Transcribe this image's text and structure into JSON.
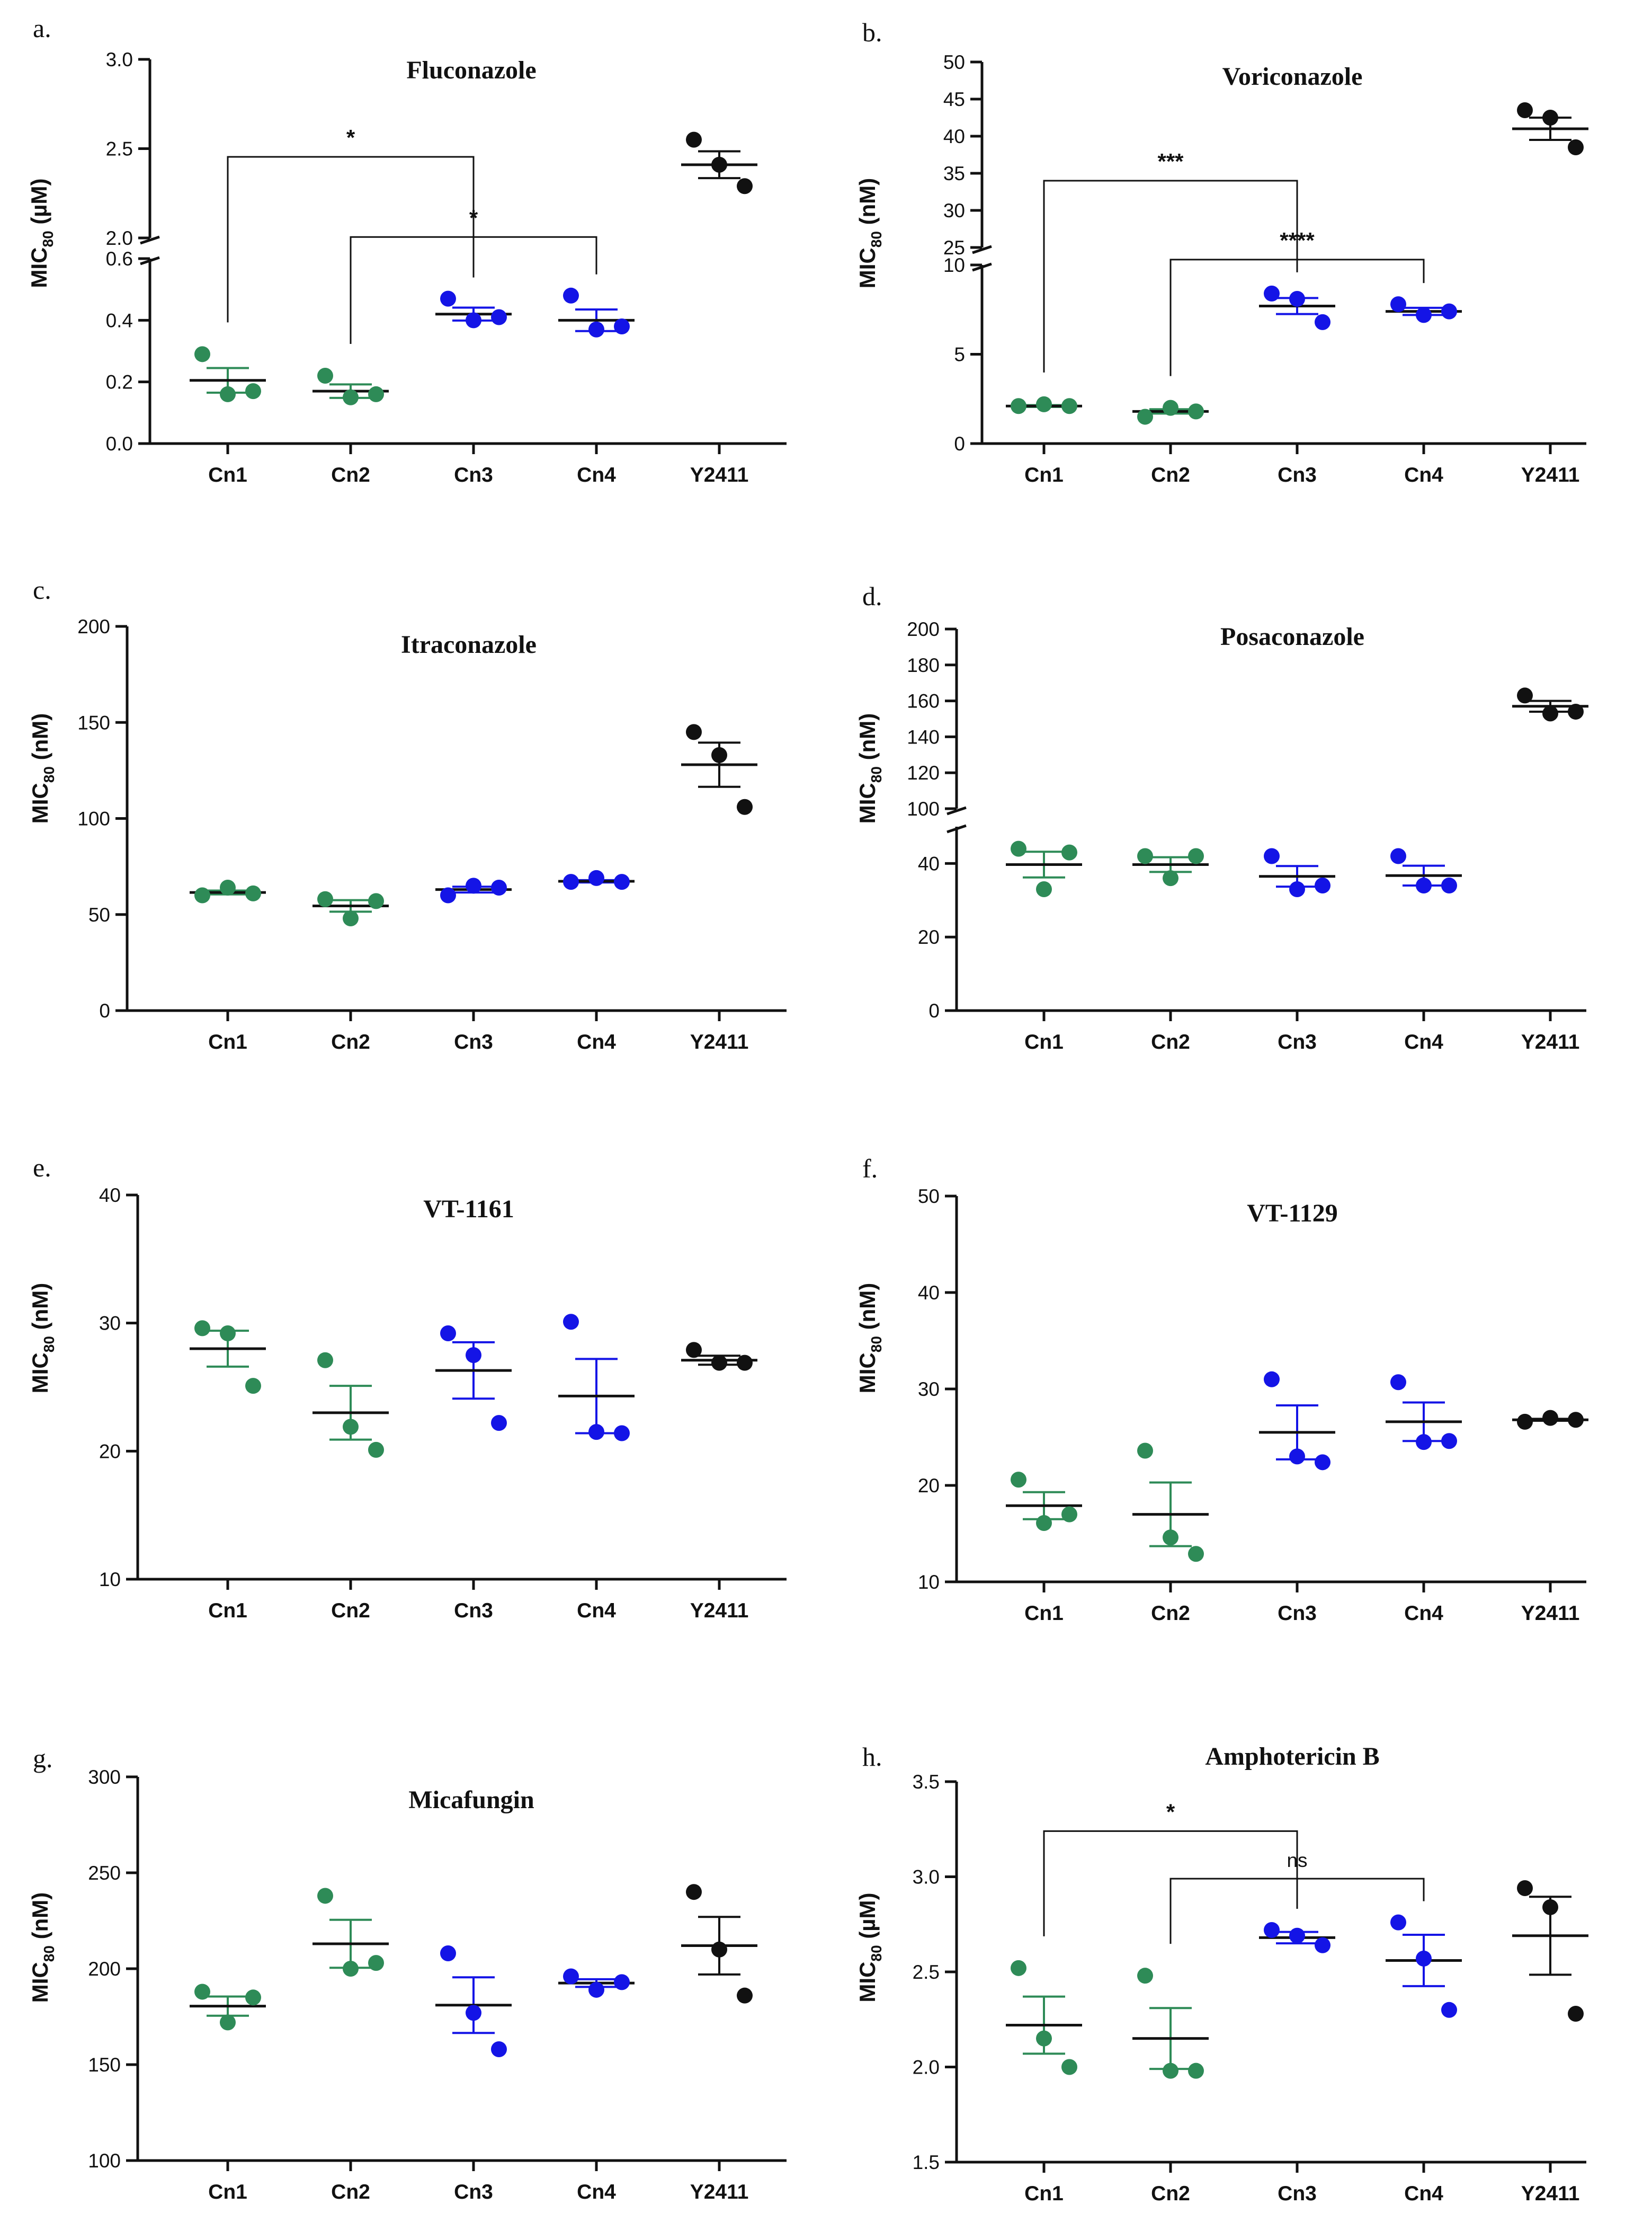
{
  "colors": {
    "green": "#2e8b57",
    "blue": "#1414e6",
    "black": "#111111"
  },
  "chart_data": [
    {
      "id": "a",
      "letter": "a.",
      "type": "scatter",
      "title": "Fluconazole",
      "ylabel": {
        "pre": "MIC",
        "sub": "80",
        "post": " (µM)"
      },
      "categories": [
        "Cn1",
        "Cn2",
        "Cn3",
        "Cn4",
        "Y2411"
      ],
      "cat_colors": [
        "green",
        "green",
        "blue",
        "blue",
        "black"
      ],
      "y_segments": [
        {
          "range": [
            0,
            0.6
          ],
          "ticks": [
            0.0,
            0.2,
            0.4,
            0.6
          ],
          "tick_labels": [
            "0.0",
            "0.2",
            "0.4",
            "0.6"
          ]
        },
        {
          "range": [
            2.0,
            3.0
          ],
          "ticks": [
            2.0,
            2.5,
            3.0
          ],
          "tick_labels": [
            "2.0",
            "2.5",
            "3.0"
          ]
        }
      ],
      "series": [
        {
          "name": "Cn1",
          "points": [
            0.29,
            0.16,
            0.17
          ],
          "mean": 0.205,
          "sem": 0.04
        },
        {
          "name": "Cn2",
          "points": [
            0.22,
            0.15,
            0.16
          ],
          "mean": 0.17,
          "sem": 0.022
        },
        {
          "name": "Cn3",
          "points": [
            0.47,
            0.4,
            0.41
          ],
          "mean": 0.42,
          "sem": 0.021
        },
        {
          "name": "Cn4",
          "points": [
            0.48,
            0.37,
            0.38
          ],
          "mean": 0.4,
          "sem": 0.035
        },
        {
          "name": "Y2411",
          "points": [
            2.55,
            2.41,
            2.29
          ],
          "mean": 2.41,
          "sem": 0.075
        }
      ],
      "significance": [
        {
          "from": 0,
          "to": 2,
          "y": 0.93,
          "label": "*"
        },
        {
          "from": 1,
          "to": 3,
          "y": 0.67,
          "label": "*"
        }
      ]
    },
    {
      "id": "b",
      "letter": "b.",
      "type": "scatter",
      "title": "Voriconazole",
      "ylabel": {
        "pre": "MIC",
        "sub": "80",
        "post": " (nM)"
      },
      "categories": [
        "Cn1",
        "Cn2",
        "Cn3",
        "Cn4",
        "Y2411"
      ],
      "cat_colors": [
        "green",
        "green",
        "blue",
        "blue",
        "black"
      ],
      "y_segments": [
        {
          "range": [
            0,
            10
          ],
          "ticks": [
            0,
            5,
            10
          ],
          "tick_labels": [
            "0",
            "5",
            "10"
          ]
        },
        {
          "range": [
            25,
            50
          ],
          "ticks": [
            25,
            30,
            35,
            40,
            45,
            50
          ],
          "tick_labels": [
            "25",
            "30",
            "35",
            "40",
            "45",
            "50"
          ]
        }
      ],
      "series": [
        {
          "name": "Cn1",
          "points": [
            2.1,
            2.2,
            2.1
          ],
          "mean": 2.1,
          "sem": 0.05
        },
        {
          "name": "Cn2",
          "points": [
            1.5,
            2.0,
            1.8
          ],
          "mean": 1.8,
          "sem": 0.12
        },
        {
          "name": "Cn3",
          "points": [
            8.4,
            8.1,
            6.8
          ],
          "mean": 7.7,
          "sem": 0.45
        },
        {
          "name": "Cn4",
          "points": [
            7.8,
            7.2,
            7.4
          ],
          "mean": 7.4,
          "sem": 0.2
        },
        {
          "name": "Y2411",
          "points": [
            43.5,
            42.5,
            38.5
          ],
          "mean": 41.0,
          "sem": 1.5
        }
      ],
      "significance": [
        {
          "from": 0,
          "to": 2,
          "y": 34.0,
          "label": "***"
        },
        {
          "from": 1,
          "to": 3,
          "y": 10.3,
          "label": "****"
        }
      ]
    },
    {
      "id": "c",
      "letter": "c.",
      "type": "scatter",
      "title": "Itraconazole",
      "ylabel": {
        "pre": "MIC",
        "sub": "80",
        "post": " (nM)"
      },
      "categories": [
        "Cn1",
        "Cn2",
        "Cn3",
        "Cn4",
        "Y2411"
      ],
      "cat_colors": [
        "green",
        "green",
        "blue",
        "blue",
        "black"
      ],
      "y_segments": [
        {
          "range": [
            0,
            200
          ],
          "ticks": [
            0,
            50,
            100,
            150,
            200
          ],
          "tick_labels": [
            "0",
            "50",
            "100",
            "150",
            "200"
          ]
        }
      ],
      "series": [
        {
          "name": "Cn1",
          "points": [
            60,
            64,
            61
          ],
          "mean": 61.5,
          "sem": 1.0
        },
        {
          "name": "Cn2",
          "points": [
            58,
            48,
            57
          ],
          "mean": 54.5,
          "sem": 3.0
        },
        {
          "name": "Cn3",
          "points": [
            60,
            65,
            64
          ],
          "mean": 63,
          "sem": 1.5
        },
        {
          "name": "Cn4",
          "points": [
            67,
            69,
            67
          ],
          "mean": 67.3,
          "sem": 0.6
        },
        {
          "name": "Y2411",
          "points": [
            145,
            133,
            106
          ],
          "mean": 128,
          "sem": 11.5
        }
      ],
      "significance": []
    },
    {
      "id": "d",
      "letter": "d.",
      "type": "scatter",
      "title": "Posaconazole",
      "ylabel": {
        "pre": "MIC",
        "sub": "80",
        "post": " (nM)"
      },
      "categories": [
        "Cn1",
        "Cn2",
        "Cn3",
        "Cn4",
        "Y2411"
      ],
      "cat_colors": [
        "green",
        "green",
        "blue",
        "blue",
        "black"
      ],
      "y_segments": [
        {
          "range": [
            0,
            50
          ],
          "ticks": [
            0,
            20,
            40
          ],
          "tick_labels": [
            "0",
            "20",
            "40"
          ]
        },
        {
          "range": [
            100,
            200
          ],
          "ticks": [
            100,
            120,
            140,
            160,
            180,
            200
          ],
          "tick_labels": [
            "100",
            "120",
            "140",
            "160",
            "180",
            "200"
          ]
        }
      ],
      "series": [
        {
          "name": "Cn1",
          "points": [
            44,
            33,
            43
          ],
          "mean": 39.7,
          "sem": 3.5
        },
        {
          "name": "Cn2",
          "points": [
            42,
            36,
            42
          ],
          "mean": 39.7,
          "sem": 2.0
        },
        {
          "name": "Cn3",
          "points": [
            42,
            33,
            34
          ],
          "mean": 36.5,
          "sem": 2.8
        },
        {
          "name": "Cn4",
          "points": [
            42,
            34,
            34
          ],
          "mean": 36.7,
          "sem": 2.7
        },
        {
          "name": "Y2411",
          "points": [
            163,
            153,
            154
          ],
          "mean": 157,
          "sem": 3.0
        }
      ],
      "significance": []
    },
    {
      "id": "e",
      "letter": "e.",
      "type": "scatter",
      "title": "VT-1161",
      "ylabel": {
        "pre": "MIC",
        "sub": "80",
        "post": " (nM)"
      },
      "categories": [
        "Cn1",
        "Cn2",
        "Cn3",
        "Cn4",
        "Y2411"
      ],
      "cat_colors": [
        "green",
        "green",
        "blue",
        "blue",
        "black"
      ],
      "y_segments": [
        {
          "range": [
            10,
            40
          ],
          "ticks": [
            10,
            20,
            30,
            40
          ],
          "tick_labels": [
            "10",
            "20",
            "30",
            "40"
          ]
        }
      ],
      "series": [
        {
          "name": "Cn1",
          "points": [
            29.6,
            29.2,
            25.1
          ],
          "mean": 28.0,
          "sem": 1.4
        },
        {
          "name": "Cn2",
          "points": [
            27.1,
            21.9,
            20.1
          ],
          "mean": 23.0,
          "sem": 2.1
        },
        {
          "name": "Cn3",
          "points": [
            29.2,
            27.5,
            22.2
          ],
          "mean": 26.3,
          "sem": 2.2
        },
        {
          "name": "Cn4",
          "points": [
            30.1,
            21.5,
            21.4
          ],
          "mean": 24.3,
          "sem": 2.9
        },
        {
          "name": "Y2411",
          "points": [
            27.9,
            26.9,
            26.9
          ],
          "mean": 27.1,
          "sem": 0.35
        }
      ],
      "significance": []
    },
    {
      "id": "f",
      "letter": "f.",
      "type": "scatter",
      "title": "VT-1129",
      "ylabel": {
        "pre": "MIC",
        "sub": "80",
        "post": " (nM)"
      },
      "categories": [
        "Cn1",
        "Cn2",
        "Cn3",
        "Cn4",
        "Y2411"
      ],
      "cat_colors": [
        "green",
        "green",
        "blue",
        "blue",
        "black"
      ],
      "y_segments": [
        {
          "range": [
            10,
            50
          ],
          "ticks": [
            10,
            20,
            30,
            40,
            50
          ],
          "tick_labels": [
            "10",
            "20",
            "30",
            "40",
            "50"
          ]
        }
      ],
      "series": [
        {
          "name": "Cn1",
          "points": [
            20.6,
            16.1,
            17.0
          ],
          "mean": 17.9,
          "sem": 1.4
        },
        {
          "name": "Cn2",
          "points": [
            23.6,
            14.6,
            12.9
          ],
          "mean": 17.0,
          "sem": 3.3
        },
        {
          "name": "Cn3",
          "points": [
            31.0,
            23.0,
            22.4
          ],
          "mean": 25.5,
          "sem": 2.8
        },
        {
          "name": "Cn4",
          "points": [
            30.7,
            24.5,
            24.6
          ],
          "mean": 26.6,
          "sem": 2.0
        },
        {
          "name": "Y2411",
          "points": [
            26.6,
            27.0,
            26.8
          ],
          "mean": 26.8,
          "sem": 0.1
        }
      ],
      "significance": []
    },
    {
      "id": "g",
      "letter": "g.",
      "type": "scatter",
      "title": "Micafungin",
      "ylabel": {
        "pre": "MIC",
        "sub": "80",
        "post": " (nM)"
      },
      "categories": [
        "Cn1",
        "Cn2",
        "Cn3",
        "Cn4",
        "Y2411"
      ],
      "cat_colors": [
        "green",
        "green",
        "blue",
        "blue",
        "black"
      ],
      "y_segments": [
        {
          "range": [
            100,
            300
          ],
          "ticks": [
            100,
            150,
            200,
            250,
            300
          ],
          "tick_labels": [
            "100",
            "150",
            "200",
            "250",
            "300"
          ]
        }
      ],
      "series": [
        {
          "name": "Cn1",
          "points": [
            188,
            172,
            185
          ],
          "mean": 180.5,
          "sem": 5.0
        },
        {
          "name": "Cn2",
          "points": [
            238,
            200,
            203
          ],
          "mean": 213,
          "sem": 12.5
        },
        {
          "name": "Cn3",
          "points": [
            208,
            177,
            158
          ],
          "mean": 181,
          "sem": 14.5
        },
        {
          "name": "Cn4",
          "points": [
            196,
            189,
            193
          ],
          "mean": 192.5,
          "sem": 2.0
        },
        {
          "name": "Y2411",
          "points": [
            240,
            210,
            186
          ],
          "mean": 212,
          "sem": 15.0
        }
      ],
      "significance": []
    },
    {
      "id": "h",
      "letter": "h.",
      "type": "scatter",
      "title": "Amphotericin B",
      "ylabel": {
        "pre": "MIC",
        "sub": "80",
        "post": " (µM)"
      },
      "categories": [
        "Cn1",
        "Cn2",
        "Cn3",
        "Cn4",
        "Y2411"
      ],
      "cat_colors": [
        "green",
        "green",
        "blue",
        "blue",
        "black"
      ],
      "y_segments": [
        {
          "range": [
            1.5,
            3.5
          ],
          "ticks": [
            1.5,
            2.0,
            2.5,
            3.0,
            3.5
          ],
          "tick_labels": [
            "1.5",
            "2.0",
            "2.5",
            "3.0",
            "3.5"
          ]
        }
      ],
      "series": [
        {
          "name": "Cn1",
          "points": [
            2.52,
            2.15,
            2.0
          ],
          "mean": 2.22,
          "sem": 0.15
        },
        {
          "name": "Cn2",
          "points": [
            2.48,
            1.98,
            1.98
          ],
          "mean": 2.15,
          "sem": 0.16
        },
        {
          "name": "Cn3",
          "points": [
            2.72,
            2.69,
            2.64
          ],
          "mean": 2.68,
          "sem": 0.03
        },
        {
          "name": "Cn4",
          "points": [
            2.76,
            2.57,
            2.3
          ],
          "mean": 2.56,
          "sem": 0.135
        },
        {
          "name": "Y2411",
          "points": [
            2.94,
            2.84,
            2.28
          ],
          "mean": 2.69,
          "sem": 0.205
        }
      ],
      "significance": [
        {
          "from": 0,
          "to": 2,
          "y": 3.24,
          "label": "*"
        },
        {
          "from": 1,
          "to": 3,
          "y": 2.99,
          "label": "ns"
        }
      ]
    }
  ]
}
